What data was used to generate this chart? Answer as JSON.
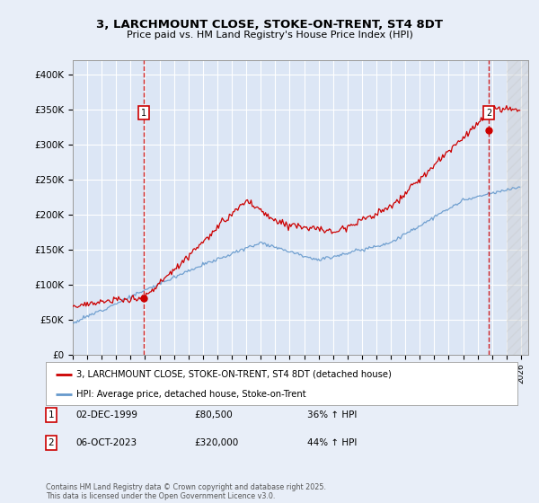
{
  "title": "3, LARCHMOUNT CLOSE, STOKE-ON-TRENT, ST4 8DT",
  "subtitle": "Price paid vs. HM Land Registry's House Price Index (HPI)",
  "ylim": [
    0,
    420000
  ],
  "yticks": [
    0,
    50000,
    100000,
    150000,
    200000,
    250000,
    300000,
    350000,
    400000
  ],
  "ytick_labels": [
    "£0",
    "£50K",
    "£100K",
    "£150K",
    "£200K",
    "£250K",
    "£300K",
    "£350K",
    "£400K"
  ],
  "xlim_start": 1995.0,
  "xlim_end": 2026.5,
  "background_color": "#e8eef8",
  "plot_bg_color": "#dce6f5",
  "grid_color": "#ffffff",
  "sale1_x": 1999.92,
  "sale1_y": 80500,
  "sale2_x": 2023.77,
  "sale2_y": 320000,
  "sale1_date": "02-DEC-1999",
  "sale1_price": "£80,500",
  "sale1_hpi": "36% ↑ HPI",
  "sale2_date": "06-OCT-2023",
  "sale2_price": "£320,000",
  "sale2_hpi": "44% ↑ HPI",
  "legend_house": "3, LARCHMOUNT CLOSE, STOKE-ON-TRENT, ST4 8DT (detached house)",
  "legend_hpi": "HPI: Average price, detached house, Stoke-on-Trent",
  "footer": "Contains HM Land Registry data © Crown copyright and database right 2025.\nThis data is licensed under the Open Government Licence v3.0.",
  "house_color": "#cc0000",
  "hpi_color": "#6699cc",
  "marker_box_color": "#cc0000"
}
